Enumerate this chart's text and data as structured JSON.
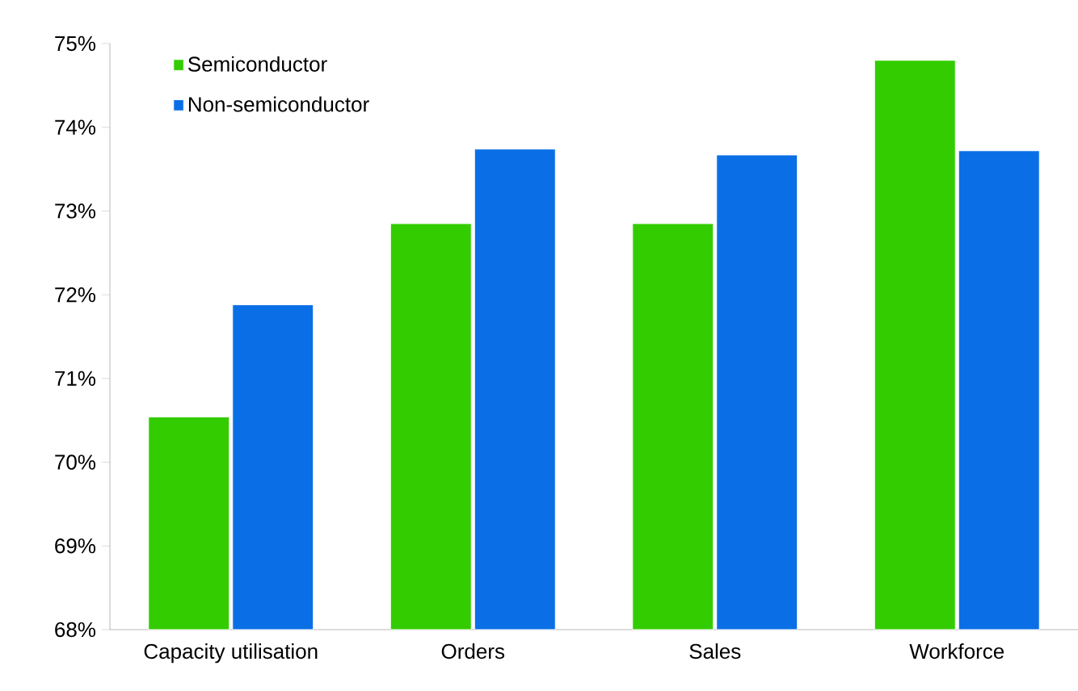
{
  "chart_data": {
    "type": "bar",
    "categories": [
      "Capacity utilisation",
      "Orders",
      "Sales",
      "Workforce"
    ],
    "series": [
      {
        "name": "Semiconductor",
        "color": "#33cc00",
        "values": [
          70.54,
          72.85,
          72.85,
          74.8
        ]
      },
      {
        "name": "Non-semiconductor",
        "color": "#0a6fe6",
        "values": [
          71.88,
          73.74,
          73.67,
          73.72
        ]
      }
    ],
    "ylim": [
      68,
      75
    ],
    "yticks": [
      {
        "value": 68,
        "label": "68%"
      },
      {
        "value": 69,
        "label": "69%"
      },
      {
        "value": 70,
        "label": "70%"
      },
      {
        "value": 71,
        "label": "71%"
      },
      {
        "value": 72,
        "label": "72%"
      },
      {
        "value": 73,
        "label": "73%"
      },
      {
        "value": 74,
        "label": "74%"
      },
      {
        "value": 75,
        "label": "75%"
      }
    ],
    "legend": "top left",
    "grid": false
  }
}
